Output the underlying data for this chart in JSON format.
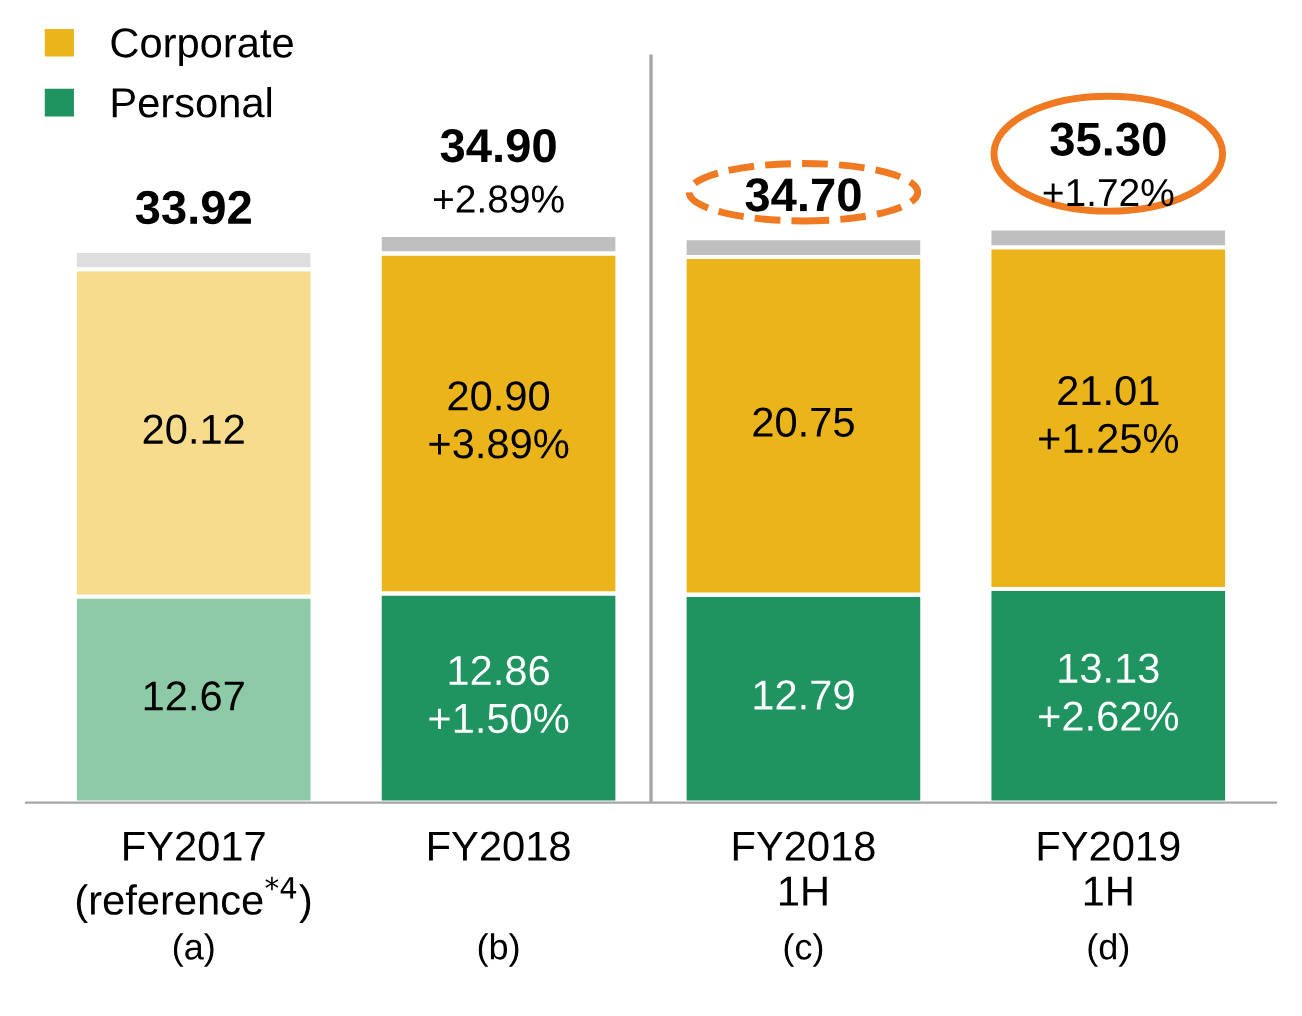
{
  "chart_data": {
    "type": "bar",
    "stacked": true,
    "categories": [
      "FY2017\n(reference$^{*4}$)",
      "FY2018",
      "FY2018\n1H",
      "FY2019\n1H"
    ],
    "series": [
      {
        "name": "Personal",
        "colors": [
          "#8ccba5",
          "#1f9461",
          "#1f9461",
          "#1f9461"
        ],
        "values": [
          12.67,
          12.86,
          12.79,
          13.13
        ],
        "value_labels": [
          "12.67",
          "12.86\n+1.50%",
          "12.79",
          "13.13\n+2.62%"
        ]
      },
      {
        "name": "Corporate",
        "colors": [
          "#f6dc8c",
          "#ebb41b",
          "#ebb41b",
          "#ebb41b"
        ],
        "values": [
          20.12,
          20.9,
          20.75,
          21.01
        ],
        "value_labels": [
          "20.12",
          "20.90\n+3.89%",
          "20.75",
          "21.01\n+1.25%"
        ]
      },
      {
        "colors": [
          "#dedede",
          "#bfbfbf",
          "#bfbfbf",
          "#bfbfbf"
        ],
        "values": [
          1.13,
          1.14,
          1.16,
          1.16
        ]
      }
    ],
    "totals": [
      "33.92",
      "34.90\n+2.89%",
      "34.70",
      "35.30\n+1.72%"
    ],
    "annotations": [
      "(a)",
      "(b)",
      "(c)",
      "(d)"
    ],
    "legend": "top left",
    "grid": false,
    "tick_labels": "x"
  }
}
